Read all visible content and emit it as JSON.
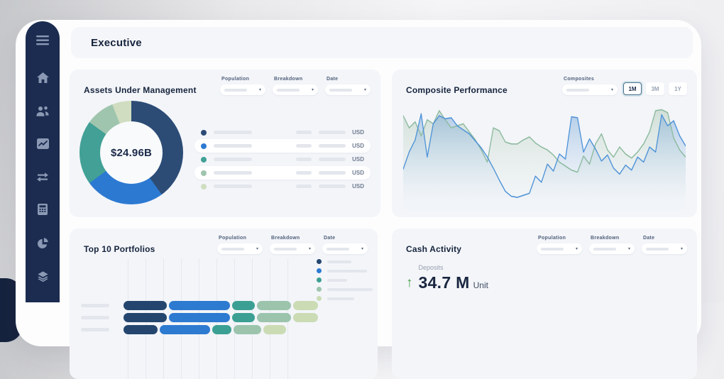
{
  "page": {
    "title": "Executive"
  },
  "sidebar": {
    "items": [
      {
        "icon": "menu-icon"
      },
      {
        "icon": "home-icon"
      },
      {
        "icon": "clients-icon"
      },
      {
        "icon": "performance-icon"
      },
      {
        "icon": "transfers-icon"
      },
      {
        "icon": "calculator-icon"
      },
      {
        "icon": "allocation-icon"
      },
      {
        "icon": "holdings-icon"
      }
    ]
  },
  "filters": {
    "labels": [
      "Population",
      "Breakdown",
      "Date"
    ]
  },
  "dropdown": {
    "caret": "▾",
    "placeholder_redacted": true
  },
  "aum": {
    "title": "Assets Under Management",
    "center_label": "$24.96B",
    "unit": "USD",
    "legend_rows": 5,
    "labels_redacted": true
  },
  "composite": {
    "title": "Composite Performance",
    "selector_label": "Composites",
    "ranges": [
      "1M",
      "3M",
      "1Y"
    ],
    "active_range": "1M"
  },
  "portfolios": {
    "title": "Top 10 Portfolios"
  },
  "cash": {
    "title": "Cash Activity",
    "metric_label": "Deposits",
    "value": "34.7 M",
    "unit": "Unit",
    "trend": "up",
    "trend_arrow": "↑",
    "trend_color": "#43a047"
  },
  "chart_data": [
    {
      "id": "aum-donut",
      "type": "pie",
      "title": "Assets Under Management",
      "center_label": "$24.96B",
      "unit": "USD",
      "labels_redacted": true,
      "values": [
        40,
        25,
        20,
        9,
        6
      ],
      "colors": [
        "#2c4c76",
        "#2c79d2",
        "#42a096",
        "#a0c5ae",
        "#d0ddc0"
      ],
      "donut": true,
      "start_angle": "top-clockwise"
    },
    {
      "id": "composite-performance",
      "type": "area",
      "title": "Composite Performance",
      "x_range": "1M",
      "axes_hidden": true,
      "ylim": [
        0,
        100
      ],
      "series": [
        {
          "name": "series-blue",
          "color": "#4f93d8",
          "values": [
            35,
            52,
            64,
            90,
            47,
            80,
            88,
            85,
            86,
            78,
            74,
            70,
            63,
            56,
            47,
            36,
            24,
            13,
            8,
            7,
            9,
            11,
            28,
            22,
            40,
            33,
            50,
            45,
            87,
            86,
            52,
            65,
            55,
            43,
            49,
            36,
            30,
            39,
            34,
            47,
            42,
            57,
            52,
            89,
            78,
            83,
            68,
            58
          ]
        },
        {
          "name": "series-green",
          "color": "#8cba9e",
          "values": [
            88,
            76,
            82,
            68,
            84,
            80,
            93,
            84,
            76,
            78,
            80,
            72,
            64,
            54,
            42,
            76,
            73,
            62,
            60,
            60,
            64,
            67,
            61,
            57,
            54,
            49,
            42,
            38,
            34,
            32,
            48,
            40,
            60,
            70,
            54,
            47,
            57,
            50,
            46,
            52,
            60,
            72,
            93,
            94,
            91,
            66,
            54,
            47
          ]
        }
      ]
    },
    {
      "id": "top-10-portfolios",
      "type": "bar",
      "orientation": "horizontal-stacked",
      "title": "Top 10 Portfolios",
      "labels_redacted": true,
      "visible_rows": 3,
      "colors": [
        "#24466e",
        "#2d7ad1",
        "#3ba093",
        "#9cc4ad",
        "#cbdcb5"
      ],
      "rows": [
        {
          "segments": [
            23,
            32,
            12,
            18,
            13
          ]
        },
        {
          "segments": [
            23,
            32,
            12,
            18,
            13
          ]
        },
        {
          "segments": [
            18,
            27,
            10,
            15,
            12
          ]
        }
      ],
      "legend_redacted_widths": [
        34,
        56,
        28,
        64,
        38
      ],
      "gridlines": 10
    }
  ]
}
